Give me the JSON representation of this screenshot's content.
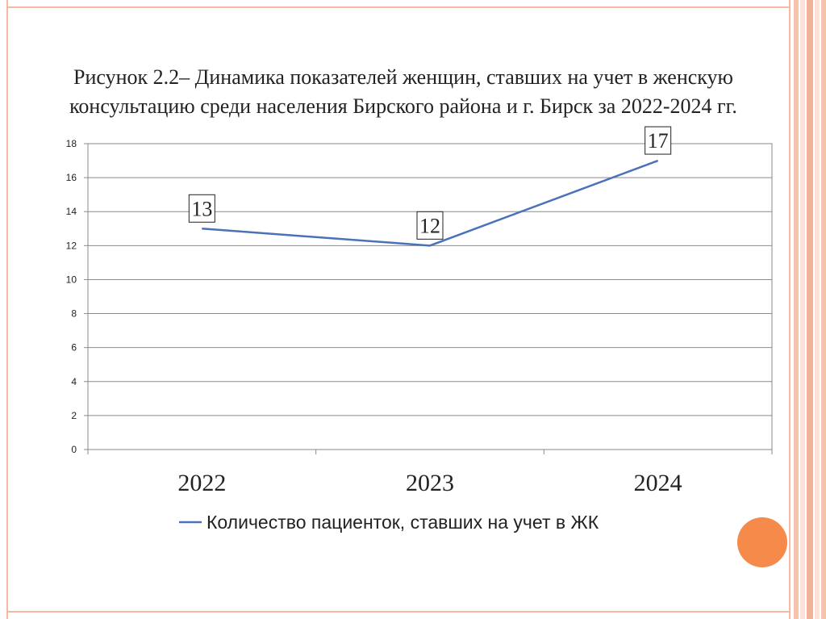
{
  "slide": {
    "frame_color": "#f3b9a4",
    "accent_circle_color": "#f58a4b",
    "stripe_colors": [
      "#f6c3af",
      "#fbe1d6",
      "#f3b19a",
      "#fbe1d6",
      "#f6c3af"
    ]
  },
  "chart_data": {
    "type": "line",
    "title": "Рисунок 2.2– Динамика показателей женщин, ставших на учет в женскую консультацию среди населения Бирского района и г. Бирск за 2022-2024 гг.",
    "categories": [
      "2022",
      "2023",
      "2024"
    ],
    "series": [
      {
        "name": "Количество пациенток, ставших на учет в ЖК",
        "values": [
          13,
          12,
          17
        ],
        "color": "#4a72b8"
      }
    ],
    "ylim": [
      0,
      18
    ],
    "yticks": [
      "0",
      "2",
      "4",
      "6",
      "8",
      "10",
      "12",
      "14",
      "16",
      "18"
    ],
    "data_labels": [
      "13",
      "12",
      "17"
    ],
    "grid": true,
    "legend_position": "bottom"
  }
}
